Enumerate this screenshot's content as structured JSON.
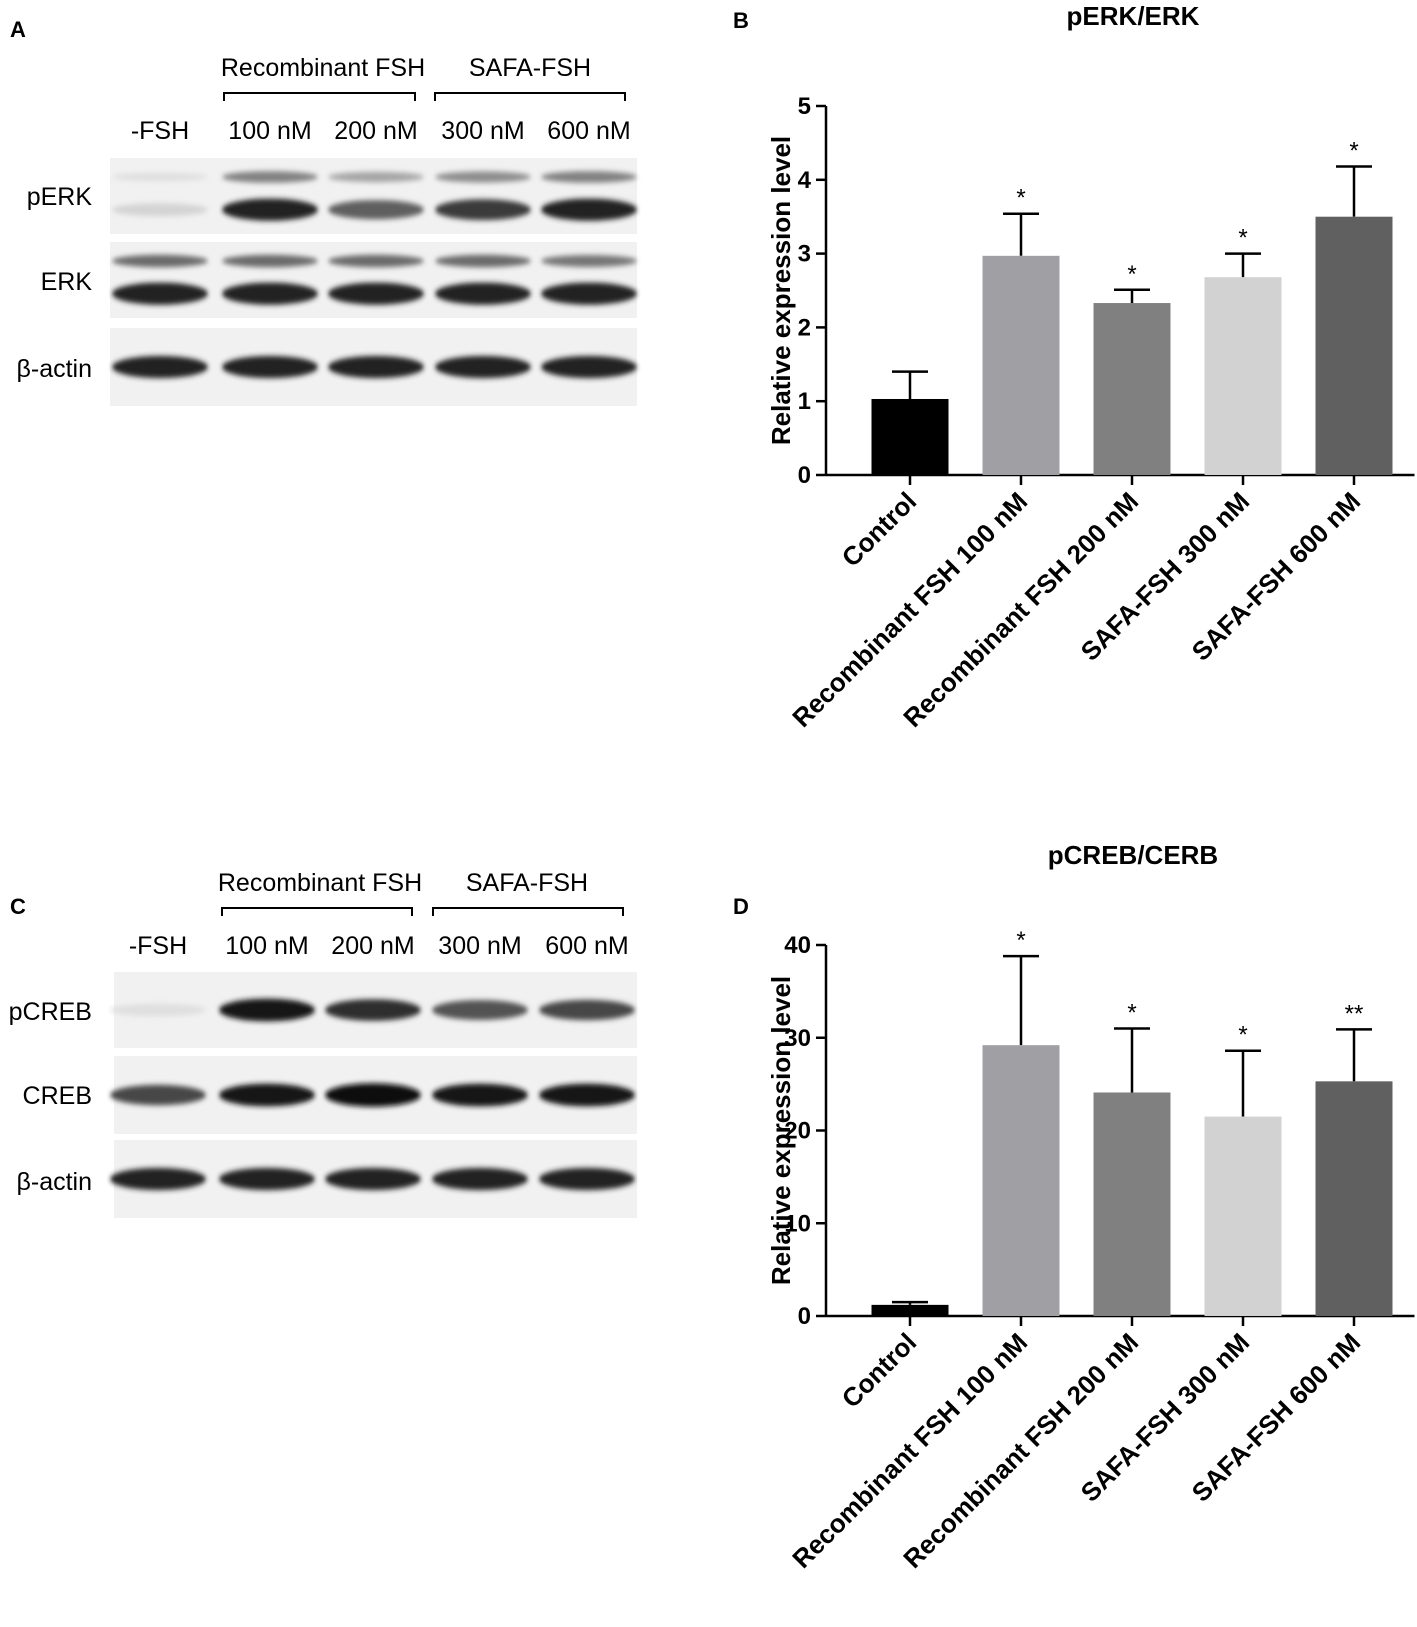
{
  "figure": {
    "panels": {
      "A": "A",
      "B": "B",
      "C": "C",
      "D": "D"
    },
    "blots": [
      {
        "panel": "A",
        "group_headers": [
          "Recombinant FSH",
          "SAFA-FSH"
        ],
        "lanes": [
          "-FSH",
          "100 nM",
          "200 nM",
          "300 nM",
          "600 nM"
        ],
        "rows": [
          {
            "label": "pERK",
            "intensity": [
              0.1,
              0.85,
              0.6,
              0.75,
              0.85
            ],
            "upper_band": [
              0.05,
              0.45,
              0.3,
              0.4,
              0.45
            ]
          },
          {
            "label": "ERK",
            "intensity": [
              0.85,
              0.85,
              0.85,
              0.85,
              0.85
            ],
            "upper_band": [
              0.55,
              0.55,
              0.55,
              0.55,
              0.5
            ]
          },
          {
            "label": "β-actin",
            "intensity": [
              0.85,
              0.85,
              0.85,
              0.85,
              0.85
            ],
            "upper_band": [
              0,
              0,
              0,
              0,
              0
            ]
          }
        ]
      },
      {
        "panel": "C",
        "group_headers": [
          "Recombinant FSH",
          "SAFA-FSH"
        ],
        "lanes": [
          "-FSH",
          "100 nM",
          "200 nM",
          "300 nM",
          "600 nM"
        ],
        "rows": [
          {
            "label": "pCREB",
            "intensity": [
              0.05,
              0.9,
              0.8,
              0.65,
              0.7
            ],
            "upper_band": [
              0,
              0,
              0,
              0,
              0
            ]
          },
          {
            "label": "CREB",
            "intensity": [
              0.7,
              0.9,
              0.95,
              0.9,
              0.9
            ],
            "upper_band": [
              0,
              0,
              0,
              0,
              0
            ]
          },
          {
            "label": "β-actin",
            "intensity": [
              0.85,
              0.85,
              0.85,
              0.85,
              0.85
            ],
            "upper_band": [
              0,
              0,
              0,
              0,
              0
            ]
          }
        ]
      }
    ]
  },
  "chart_data": [
    {
      "panel": "B",
      "type": "bar",
      "title": "pERK/ERK",
      "xlabel": "",
      "ylabel": "Relative expression level",
      "ylim": [
        0,
        5
      ],
      "yticks": [
        0,
        1,
        2,
        3,
        4,
        5
      ],
      "categories": [
        "Control",
        "Recombinant FSH 100 nM",
        "Recombinant FSH 200 nM",
        "SAFA-FSH 300 nM",
        "SAFA-FSH 600 nM"
      ],
      "values": [
        1.03,
        2.97,
        2.33,
        2.68,
        3.5
      ],
      "errors": [
        0.37,
        0.57,
        0.18,
        0.32,
        0.68
      ],
      "significance": [
        "",
        "*",
        "*",
        "*",
        "*"
      ],
      "colors": [
        "#000000",
        "#a0a0a4",
        "#808080",
        "#d2d2d2",
        "#606060"
      ],
      "grid": false
    },
    {
      "panel": "D",
      "type": "bar",
      "title": "pCREB/CERB",
      "xlabel": "",
      "ylabel": "Relative expression level",
      "ylim": [
        0,
        40
      ],
      "yticks": [
        0,
        10,
        20,
        30,
        40
      ],
      "categories": [
        "Control",
        "Recombinant FSH 100 nM",
        "Recombinant FSH 200 nM",
        "SAFA-FSH 300 nM",
        "SAFA-FSH 600 nM"
      ],
      "values": [
        1.2,
        29.2,
        24.1,
        21.5,
        25.3
      ],
      "errors": [
        0.3,
        9.6,
        6.9,
        7.1,
        5.6
      ],
      "significance": [
        "",
        "*",
        "*",
        "*",
        "**"
      ],
      "colors": [
        "#000000",
        "#a0a0a4",
        "#808080",
        "#d2d2d2",
        "#606060"
      ],
      "grid": false
    }
  ]
}
